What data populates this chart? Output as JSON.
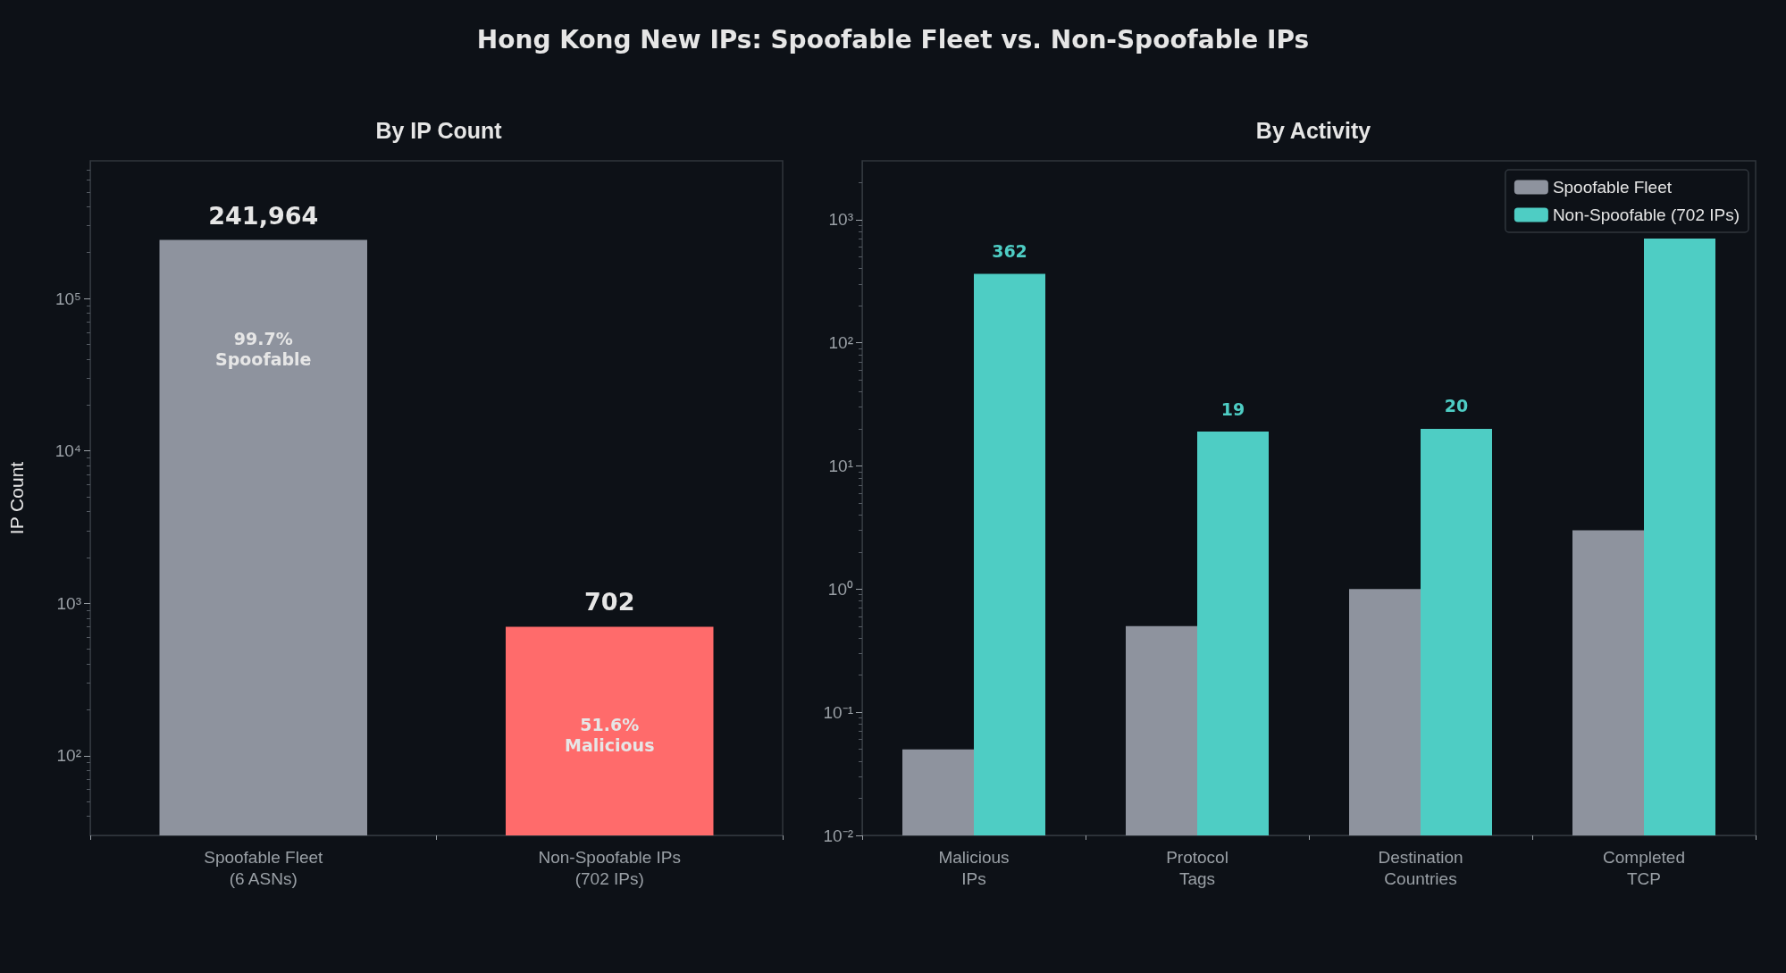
{
  "chart_data": [
    {
      "type": "bar",
      "title": "By IP Count",
      "ylabel": "IP Count",
      "categories": [
        "Spoofable Fleet\n(6 ASNs)",
        "Non-Spoofable IPs\n(702 IPs)"
      ],
      "values": [
        241964,
        702
      ],
      "colors": [
        "#8e939e",
        "#ff6b6b"
      ],
      "value_labels": [
        "241,964",
        "702"
      ],
      "log": true,
      "ylim": [
        30,
        800000
      ],
      "yticks": [
        {
          "value": 100,
          "label": "10²"
        },
        {
          "value": 1000,
          "label": "10³"
        },
        {
          "value": 10000,
          "label": "10⁴"
        },
        {
          "value": 100000,
          "label": "10⁵"
        }
      ],
      "grid": false,
      "annotations": [
        "Hong Kong New IPs: Spoofable Fleet vs. Non-Spoofable IPs",
        "99.7%\nSpoofable",
        "51.6%\nMalicious"
      ]
    },
    {
      "type": "bar",
      "title": "By Activity",
      "categories": [
        "Malicious\nIPs",
        "Protocol\nTags",
        "Destination\nCountries",
        "Completed\nTCP"
      ],
      "series": [
        {
          "name": "Spoofable Fleet",
          "color": "#8e939e",
          "values": [
            0.05,
            0.5,
            1,
            3
          ]
        },
        {
          "name": "Non-Spoofable (702 IPs)",
          "color": "#4ecdc4",
          "values": [
            362,
            19,
            20,
            702
          ],
          "value_labels": [
            "362",
            "19",
            "20",
            null
          ]
        }
      ],
      "log": true,
      "ylim": [
        0.01,
        3000
      ],
      "yticks": [
        {
          "value": 0.01,
          "label": "10⁻²"
        },
        {
          "value": 0.1,
          "label": "10⁻¹"
        },
        {
          "value": 1,
          "label": "10⁰"
        },
        {
          "value": 10,
          "label": "10¹"
        },
        {
          "value": 100,
          "label": "10²"
        },
        {
          "value": 1000,
          "label": "10³"
        }
      ],
      "grid": false,
      "legend": "top right"
    }
  ]
}
